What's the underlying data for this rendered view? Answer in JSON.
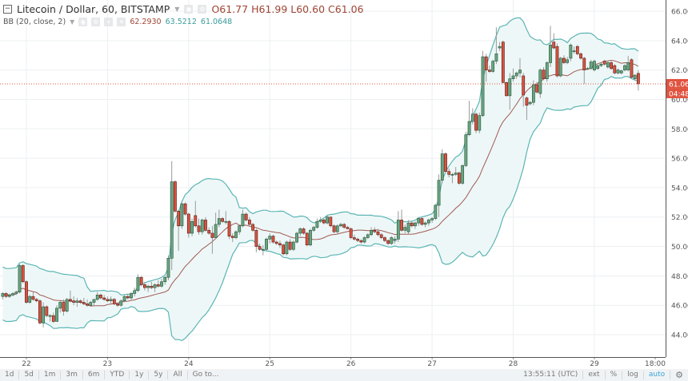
{
  "header": {
    "title": "Litecoin / Dollar, 60, BITSTAMP",
    "open_label": "O",
    "open": "61.77",
    "high_label": "H",
    "high": "61.99",
    "low_label": "L",
    "low": "60.60",
    "close_label": "C",
    "close": "61.06"
  },
  "indicator": {
    "name": "BB (20, close, 2)",
    "basis": "62.2930",
    "upper": "63.5212",
    "lower": "61.0648"
  },
  "price_axis": {
    "last_price": "61.06",
    "countdown": "04:48"
  },
  "toolbar": {
    "ranges": [
      "1d",
      "5d",
      "1m",
      "3m",
      "6m",
      "YTD",
      "1y",
      "5y",
      "All"
    ],
    "goto": "Go to...",
    "time": "13:55:11 (UTC)",
    "ext": "ext",
    "percent": "%",
    "log": "log",
    "auto": "auto",
    "settings_icon": "gear-icon"
  },
  "colors": {
    "up": "#6ba583",
    "up_border": "#225437",
    "down": "#d75442",
    "down_border": "#5b1a13",
    "band": "#5cb5b5",
    "band_fill": "#eef7f7",
    "basis": "#a05a55",
    "last_price": "#e0533f"
  },
  "chart_data": {
    "type": "candlestick",
    "interval": "60",
    "ylim": [
      42.0,
      66.8
    ],
    "y_ticks": [
      "44.00",
      "46.00",
      "48.00",
      "50.00",
      "52.00",
      "54.00",
      "56.00",
      "58.00",
      "60.00",
      "62.00",
      "64.00",
      "66.00"
    ],
    "x_ticks": [
      {
        "label": "22",
        "index": 7
      },
      {
        "label": "23",
        "index": 31
      },
      {
        "label": "24",
        "index": 55
      },
      {
        "label": "25",
        "index": 79
      },
      {
        "label": "26",
        "index": 103
      },
      {
        "label": "27",
        "index": 127
      },
      {
        "label": "28",
        "index": 151
      },
      {
        "label": "29",
        "index": 175
      },
      {
        "label": "18:00",
        "index": 193
      }
    ],
    "grid": true,
    "indicator": {
      "type": "bollinger",
      "period": 20,
      "stddev": 2
    },
    "candles_ohlc": [
      [
        46.6,
        46.9,
        46.4,
        46.8
      ],
      [
        46.8,
        46.9,
        46.5,
        46.6
      ],
      [
        46.6,
        46.8,
        46.5,
        46.7
      ],
      [
        46.7,
        46.9,
        46.6,
        46.8
      ],
      [
        46.8,
        47.0,
        46.7,
        46.9
      ],
      [
        46.9,
        48.8,
        46.8,
        48.7
      ],
      [
        48.7,
        48.8,
        47.5,
        47.6
      ],
      [
        47.6,
        47.7,
        46.1,
        46.2
      ],
      [
        46.2,
        46.7,
        46.1,
        46.6
      ],
      [
        46.6,
        46.9,
        46.3,
        46.4
      ],
      [
        46.4,
        46.5,
        46.2,
        46.3
      ],
      [
        46.3,
        46.4,
        44.7,
        44.8
      ],
      [
        44.8,
        46.2,
        44.5,
        45.9
      ],
      [
        45.9,
        46.0,
        45.2,
        45.3
      ],
      [
        45.3,
        45.4,
        44.9,
        45.3
      ],
      [
        45.3,
        45.5,
        44.8,
        44.9
      ],
      [
        44.9,
        46.0,
        44.9,
        45.8
      ],
      [
        45.8,
        46.3,
        45.5,
        46.2
      ],
      [
        46.2,
        46.4,
        45.3,
        45.6
      ],
      [
        45.6,
        46.5,
        45.5,
        46.4
      ],
      [
        46.4,
        47.0,
        46.2,
        46.3
      ],
      [
        46.3,
        46.6,
        46.0,
        46.2
      ],
      [
        46.2,
        46.5,
        45.9,
        46.3
      ],
      [
        46.3,
        46.4,
        46.1,
        46.2
      ],
      [
        46.2,
        46.5,
        46.0,
        46.1
      ],
      [
        46.1,
        46.4,
        45.9,
        46.0
      ],
      [
        46.0,
        46.3,
        45.9,
        46.2
      ],
      [
        46.2,
        46.4,
        46.0,
        46.4
      ],
      [
        46.4,
        46.9,
        46.3,
        46.7
      ],
      [
        46.7,
        46.8,
        46.4,
        46.5
      ],
      [
        46.5,
        46.7,
        46.3,
        46.4
      ],
      [
        46.4,
        46.6,
        46.2,
        46.3
      ],
      [
        46.3,
        46.6,
        46.1,
        46.4
      ],
      [
        46.4,
        46.5,
        46.0,
        46.1
      ],
      [
        46.1,
        46.2,
        45.9,
        46.0
      ],
      [
        46.0,
        46.4,
        45.9,
        46.3
      ],
      [
        46.3,
        46.7,
        46.2,
        46.6
      ],
      [
        46.6,
        46.8,
        46.4,
        46.5
      ],
      [
        46.5,
        46.9,
        46.4,
        46.8
      ],
      [
        46.8,
        47.2,
        46.6,
        47.0
      ],
      [
        47.0,
        48.1,
        46.9,
        47.9
      ],
      [
        47.9,
        48.0,
        47.3,
        47.4
      ],
      [
        47.4,
        47.6,
        47.0,
        47.2
      ],
      [
        47.2,
        47.4,
        46.9,
        47.3
      ],
      [
        47.3,
        47.6,
        47.1,
        47.2
      ],
      [
        47.2,
        47.5,
        46.9,
        47.4
      ],
      [
        47.4,
        47.7,
        47.2,
        47.3
      ],
      [
        47.3,
        47.8,
        47.2,
        47.6
      ],
      [
        47.6,
        48.0,
        47.4,
        47.9
      ],
      [
        47.9,
        49.4,
        47.7,
        49.2
      ],
      [
        49.2,
        55.8,
        48.4,
        54.4
      ],
      [
        54.4,
        54.5,
        52.3,
        52.4
      ],
      [
        52.4,
        52.5,
        49.7,
        51.4
      ],
      [
        51.4,
        53.0,
        51.2,
        52.9
      ],
      [
        52.9,
        53.0,
        52.1,
        52.2
      ],
      [
        52.2,
        52.3,
        50.6,
        50.9
      ],
      [
        50.9,
        51.9,
        50.7,
        51.7
      ],
      [
        52.1,
        53.1,
        51.3,
        51.4
      ],
      [
        51.4,
        51.9,
        50.8,
        51.0
      ],
      [
        51.0,
        51.9,
        50.8,
        51.8
      ],
      [
        51.8,
        52.0,
        51.0,
        51.1
      ],
      [
        51.1,
        51.3,
        50.8,
        50.9
      ],
      [
        50.9,
        51.4,
        49.5,
        50.6
      ],
      [
        50.6,
        52.3,
        50.5,
        51.5
      ],
      [
        51.5,
        52.5,
        51.3,
        51.9
      ],
      [
        51.9,
        52.0,
        51.6,
        51.7
      ],
      [
        51.7,
        52.4,
        51.5,
        51.7
      ],
      [
        51.7,
        51.8,
        50.5,
        50.7
      ],
      [
        50.7,
        50.9,
        50.3,
        50.6
      ],
      [
        50.6,
        51.1,
        50.5,
        51.0
      ],
      [
        51.0,
        51.5,
        50.8,
        51.4
      ],
      [
        51.4,
        52.5,
        51.3,
        52.2
      ],
      [
        52.2,
        52.3,
        51.7,
        51.8
      ],
      [
        51.8,
        52.0,
        51.4,
        51.5
      ],
      [
        51.5,
        51.6,
        51.0,
        51.1
      ],
      [
        51.1,
        51.2,
        49.6,
        50.0
      ],
      [
        50.0,
        50.2,
        49.7,
        49.8
      ],
      [
        49.8,
        50.1,
        49.4,
        49.8
      ],
      [
        49.8,
        50.6,
        49.7,
        50.5
      ],
      [
        50.5,
        50.9,
        50.2,
        50.7
      ],
      [
        50.7,
        50.8,
        50.2,
        50.3
      ],
      [
        50.3,
        50.4,
        50.1,
        50.2
      ],
      [
        50.2,
        50.4,
        49.9,
        50.1
      ],
      [
        50.1,
        50.2,
        49.4,
        49.5
      ],
      [
        49.5,
        50.4,
        49.4,
        50.3
      ],
      [
        50.3,
        50.5,
        49.7,
        49.8
      ],
      [
        49.8,
        50.4,
        49.7,
        50.3
      ],
      [
        50.3,
        51.0,
        50.2,
        50.9
      ],
      [
        50.9,
        51.3,
        50.7,
        51.2
      ],
      [
        51.2,
        51.3,
        50.8,
        50.9
      ],
      [
        50.9,
        51.0,
        50.0,
        50.1
      ],
      [
        50.1,
        51.2,
        50.0,
        51.1
      ],
      [
        51.1,
        51.4,
        51.0,
        51.3
      ],
      [
        51.3,
        51.9,
        51.2,
        51.7
      ],
      [
        51.7,
        52.0,
        51.6,
        51.8
      ],
      [
        51.8,
        51.9,
        51.5,
        51.6
      ],
      [
        51.6,
        52.1,
        51.5,
        52.0
      ],
      [
        52.0,
        52.0,
        51.3,
        51.4
      ],
      [
        51.4,
        51.5,
        50.9,
        51.0
      ],
      [
        51.0,
        51.5,
        50.9,
        51.4
      ],
      [
        51.4,
        51.6,
        51.3,
        51.5
      ],
      [
        51.5,
        51.6,
        51.2,
        51.3
      ],
      [
        51.3,
        51.4,
        51.2,
        51.2
      ],
      [
        51.2,
        51.3,
        50.5,
        50.6
      ],
      [
        50.6,
        50.8,
        50.4,
        50.5
      ],
      [
        50.5,
        50.6,
        50.3,
        50.4
      ],
      [
        50.4,
        50.5,
        50.2,
        50.3
      ],
      [
        50.3,
        50.7,
        50.2,
        50.6
      ],
      [
        50.6,
        50.9,
        50.5,
        50.8
      ],
      [
        50.8,
        51.3,
        50.7,
        51.1
      ],
      [
        51.1,
        51.3,
        50.9,
        51.0
      ],
      [
        51.0,
        51.2,
        50.7,
        50.8
      ],
      [
        50.8,
        50.9,
        50.5,
        50.6
      ],
      [
        50.6,
        50.7,
        50.3,
        50.4
      ],
      [
        50.4,
        50.5,
        50.1,
        50.2
      ],
      [
        50.2,
        50.7,
        50.1,
        50.6
      ],
      [
        50.4,
        50.7,
        50.2,
        50.5
      ],
      [
        50.5,
        52.4,
        50.3,
        51.8
      ],
      [
        51.8,
        52.5,
        51.0,
        51.1
      ],
      [
        51.1,
        51.5,
        50.9,
        51.3
      ],
      [
        51.0,
        51.8,
        50.8,
        51.6
      ],
      [
        51.6,
        51.7,
        51.3,
        51.4
      ],
      [
        51.4,
        51.7,
        51.2,
        51.6
      ],
      [
        51.6,
        52.0,
        51.4,
        51.9
      ],
      [
        51.9,
        52.0,
        51.4,
        51.5
      ],
      [
        51.5,
        51.7,
        51.3,
        51.6
      ],
      [
        51.6,
        51.9,
        51.4,
        51.8
      ],
      [
        51.8,
        52.0,
        51.6,
        51.9
      ],
      [
        51.9,
        52.9,
        51.8,
        52.8
      ],
      [
        52.8,
        54.9,
        52.0,
        54.5
      ],
      [
        54.5,
        56.6,
        54.3,
        56.3
      ],
      [
        56.3,
        56.4,
        55.0,
        55.1
      ],
      [
        55.1,
        55.3,
        54.7,
        54.9
      ],
      [
        54.9,
        55.0,
        54.3,
        54.9
      ],
      [
        54.9,
        55.4,
        54.8,
        55.0
      ],
      [
        55.0,
        55.1,
        54.2,
        54.3
      ],
      [
        54.3,
        55.6,
        54.2,
        55.5
      ],
      [
        55.5,
        57.8,
        55.4,
        57.6
      ],
      [
        57.6,
        59.9,
        57.5,
        58.5
      ],
      [
        58.5,
        59.4,
        58.3,
        59.0
      ],
      [
        59.0,
        59.1,
        57.7,
        57.9
      ],
      [
        57.9,
        59.1,
        57.7,
        58.9
      ],
      [
        58.9,
        63.3,
        58.8,
        62.9
      ],
      [
        62.9,
        63.1,
        61.2,
        62.0
      ],
      [
        62.0,
        62.3,
        61.8,
        61.9
      ],
      [
        61.9,
        62.7,
        61.8,
        62.6
      ],
      [
        62.6,
        64.9,
        62.4,
        63.1
      ],
      [
        63.5,
        63.9,
        63.3,
        63.6
      ],
      [
        63.9,
        64.0,
        61.1,
        61.15
      ],
      [
        61.15,
        61.2,
        60.2,
        60.25
      ],
      [
        60.25,
        61.8,
        59.3,
        61.4
      ],
      [
        61.4,
        62.1,
        61.2,
        61.6
      ],
      [
        61.6,
        61.9,
        61.4,
        61.8
      ],
      [
        61.8,
        62.8,
        61.5,
        62.0
      ],
      [
        61.6,
        61.8,
        59.5,
        60.3
      ],
      [
        60.1,
        60.2,
        58.6,
        59.6
      ],
      [
        59.7,
        59.9,
        59.6,
        59.8
      ],
      [
        59.8,
        61.3,
        59.6,
        61.0
      ],
      [
        61.0,
        61.2,
        60.4,
        60.5
      ],
      [
        60.4,
        62.1,
        60.1,
        62.0
      ],
      [
        62.0,
        62.2,
        61.3,
        61.4
      ],
      [
        61.4,
        62.6,
        61.2,
        62.5
      ],
      [
        62.5,
        65.0,
        62.2,
        63.7
      ],
      [
        63.9,
        64.5,
        63.4,
        63.5
      ],
      [
        63.6,
        63.8,
        61.5,
        61.6
      ],
      [
        61.6,
        62.9,
        61.5,
        62.8
      ],
      [
        62.8,
        63.0,
        62.4,
        62.5
      ],
      [
        62.5,
        62.9,
        62.4,
        62.7
      ],
      [
        62.8,
        63.8,
        62.6,
        63.7
      ],
      [
        63.3,
        63.6,
        63.1,
        63.3
      ],
      [
        63.6,
        63.7,
        63.0,
        63.1
      ],
      [
        63.1,
        63.2,
        62.7,
        62.8
      ],
      [
        62.8,
        62.9,
        61.05,
        62.0
      ],
      [
        62.1,
        62.2,
        62.0,
        62.1
      ],
      [
        62.1,
        62.7,
        62.0,
        62.55
      ],
      [
        62.0,
        62.7,
        61.9,
        62.6
      ],
      [
        62.1,
        62.4,
        62.0,
        62.3
      ],
      [
        62.3,
        62.5,
        62.2,
        62.4
      ],
      [
        62.6,
        62.7,
        62.3,
        62.4
      ],
      [
        62.2,
        62.6,
        62.1,
        62.5
      ],
      [
        62.5,
        62.6,
        62.0,
        62.1
      ],
      [
        62.3,
        62.4,
        61.7,
        61.8
      ],
      [
        61.8,
        62.1,
        61.7,
        62.0
      ],
      [
        61.8,
        62.0,
        61.7,
        61.95
      ],
      [
        62.0,
        62.4,
        61.9,
        62.3
      ],
      [
        62.0,
        62.95,
        61.9,
        62.5
      ],
      [
        62.7,
        62.8,
        61.4,
        61.5
      ],
      [
        61.4,
        61.7,
        61.3,
        61.65
      ],
      [
        61.77,
        61.99,
        60.6,
        61.06
      ]
    ]
  }
}
